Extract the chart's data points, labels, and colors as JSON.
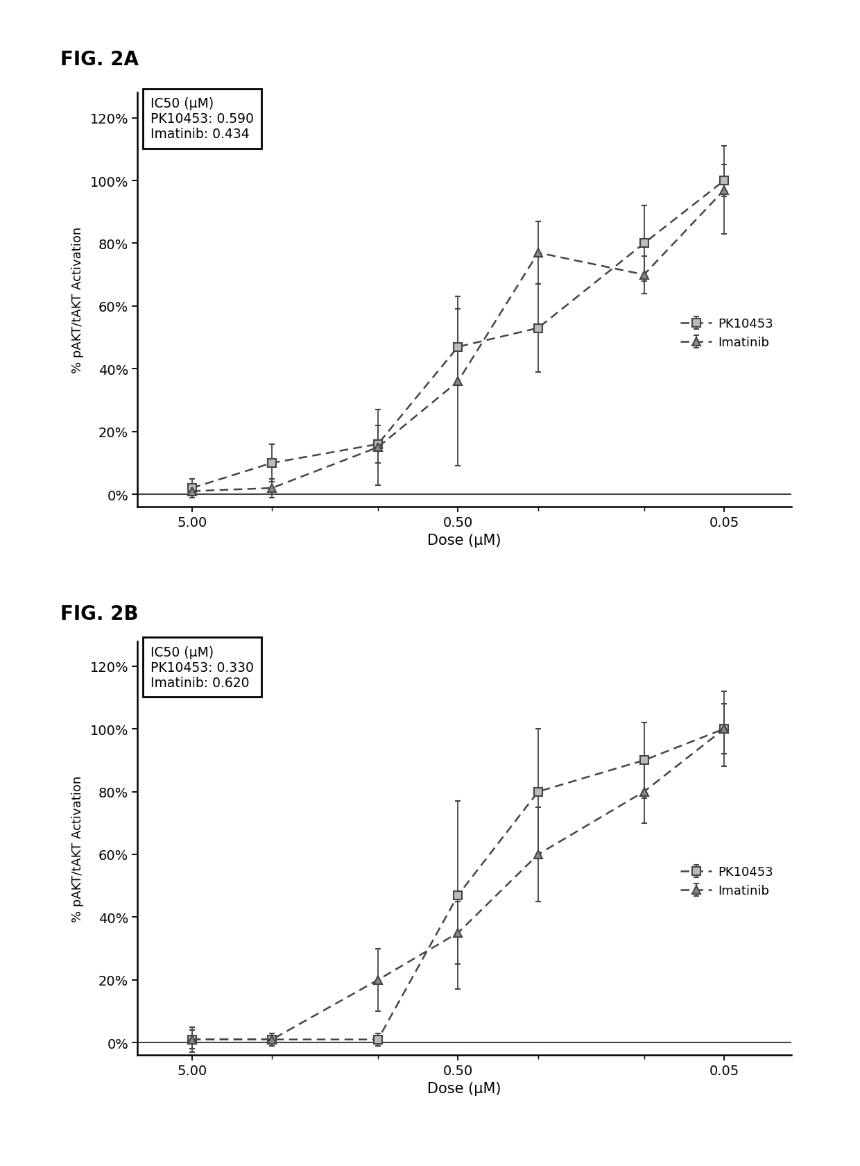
{
  "fig_a_label": "FIG. 2A",
  "fig_b_label": "FIG. 2B",
  "ylabel": "% pAKT/tAKT Activation",
  "xlabel": "Dose (μM)",
  "ic50_title": "IC50 (μM)",
  "fig_a_ic50_pk": "PK10453: 0.590",
  "fig_a_ic50_im": "Imatinib: 0.434",
  "fig_b_ic50_pk": "PK10453: 0.330",
  "fig_b_ic50_im": "Imatinib: 0.620",
  "legend_pk": "PK10453",
  "legend_im": "Imatinib",
  "x_doses": [
    5.0,
    2.5,
    1.0,
    0.5,
    0.25,
    0.1,
    0.05
  ],
  "fig_a_pk_y": [
    0.02,
    0.1,
    0.16,
    0.47,
    0.53,
    0.8,
    1.0
  ],
  "fig_a_pk_err": [
    0.03,
    0.06,
    0.06,
    0.12,
    0.14,
    0.12,
    0.05
  ],
  "fig_a_im_y": [
    0.01,
    0.02,
    0.15,
    0.36,
    0.77,
    0.7,
    0.97
  ],
  "fig_a_im_err": [
    0.02,
    0.03,
    0.12,
    0.27,
    0.1,
    0.06,
    0.14
  ],
  "fig_b_pk_y": [
    0.01,
    0.01,
    0.01,
    0.47,
    0.8,
    0.9,
    1.0
  ],
  "fig_b_pk_err": [
    0.03,
    0.02,
    0.02,
    0.3,
    0.2,
    0.12,
    0.12
  ],
  "fig_b_im_y": [
    0.01,
    0.01,
    0.2,
    0.35,
    0.6,
    0.8,
    1.0
  ],
  "fig_b_im_err": [
    0.04,
    0.02,
    0.1,
    0.1,
    0.15,
    0.1,
    0.08
  ],
  "line_color": "#444444",
  "bg_color": "#ffffff",
  "yticks": [
    0.0,
    0.2,
    0.4,
    0.6,
    0.8,
    1.0,
    1.2
  ],
  "ytick_labels": [
    "0%",
    "20%",
    "40%",
    "60%",
    "80%",
    "100%",
    "120%"
  ],
  "xtick_positions": [
    5.0,
    0.5,
    0.05
  ],
  "xtick_labels": [
    "5.00",
    "0.50",
    "0.05"
  ],
  "xminor_ticks": [
    2.5,
    1.0,
    0.25,
    0.1
  ]
}
